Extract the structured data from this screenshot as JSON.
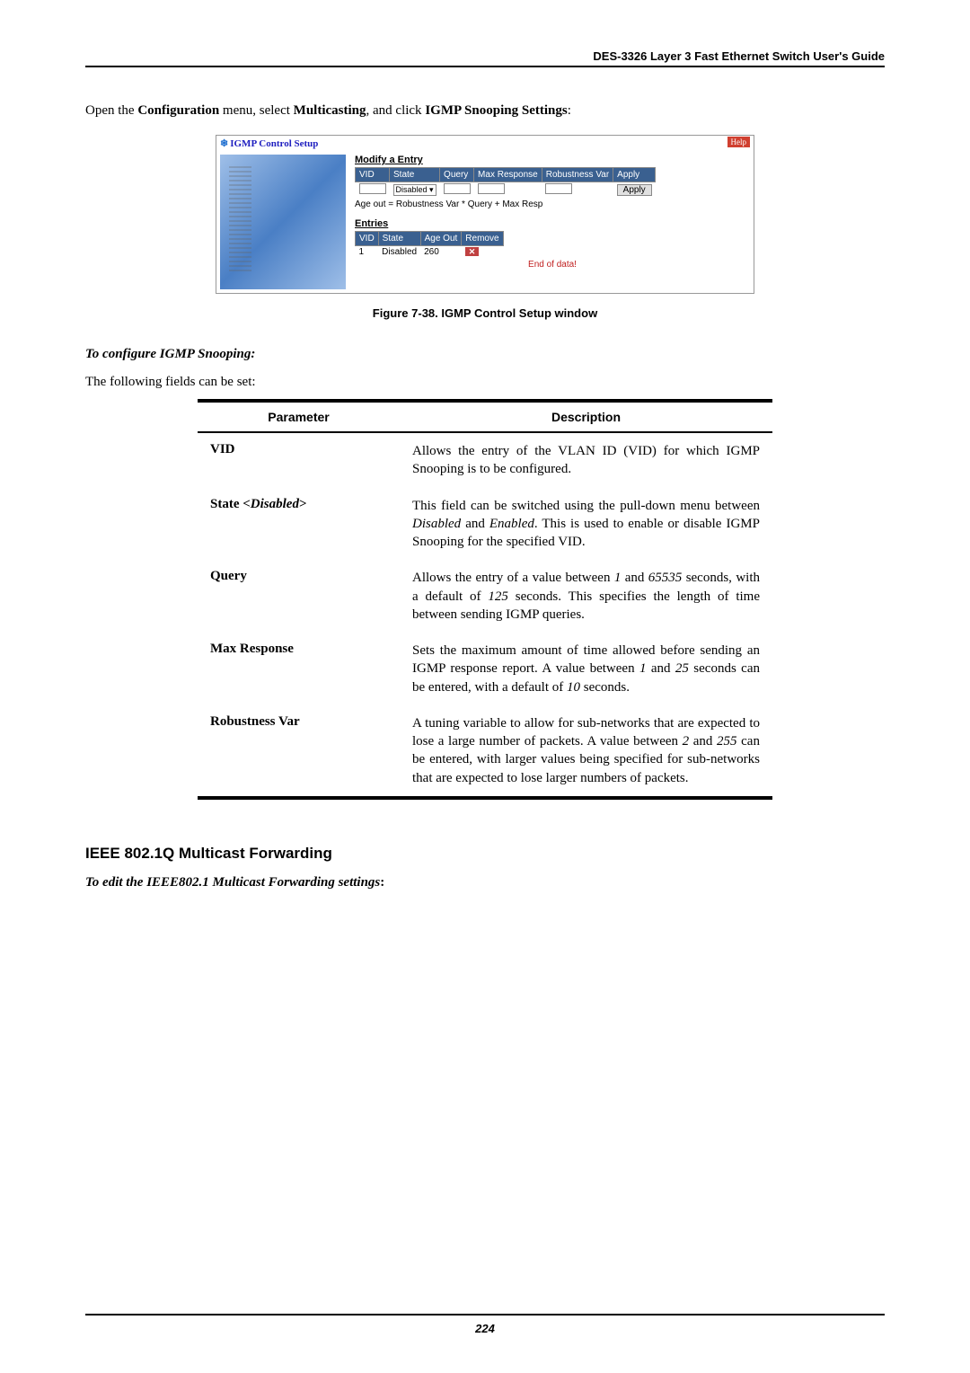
{
  "header": {
    "title": "DES-3326 Layer 3 Fast Ethernet Switch User's Guide"
  },
  "intro": {
    "prefix": "Open the ",
    "menu1": "Configuration",
    "mid1": " menu, select ",
    "menu2": "Multicasting",
    "mid2": ", and click ",
    "menu3": "IGMP Snooping Settings",
    "suffix": ":"
  },
  "screenshot": {
    "title": "IGMP Control Setup",
    "help": "Help",
    "modify_title": "Modify a Entry",
    "headers": [
      "VID",
      "State",
      "Query",
      "Max Response",
      "Robustness Var",
      "Apply"
    ],
    "state_dropdown": "Disabled ▾",
    "apply_btn": "Apply",
    "formula": "Age out = Robustness Var * Query + Max Resp",
    "entries_title": "Entries",
    "entries_headers": [
      "VID",
      "State",
      "Age Out",
      "Remove"
    ],
    "entries_row": [
      "1",
      "Disabled",
      "260"
    ],
    "end": "End of data!"
  },
  "figure_caption": "Figure 7-38.  IGMP Control Setup window",
  "configure_heading": "To configure IGMP Snooping:",
  "fields_intro": "The following fields can be set:",
  "table": {
    "col1": "Parameter",
    "col2": "Description",
    "rows": [
      {
        "param": "VID",
        "desc": "Allows the entry of the VLAN ID (VID) for which IGMP Snooping is to be configured."
      },
      {
        "param_html": "State <<i>Disabled</i>>",
        "desc_html": "This field can be switched using the pull-down menu between <i>Disabled</i> and <i>Enabled</i>. This is used to enable or disable IGMP Snooping for the specified VID."
      },
      {
        "param": "Query",
        "desc_html": "Allows the entry of a value between <i>1</i> and <i>65535</i> seconds, with a default of <i>125</i> seconds. This specifies the length of time between sending IGMP queries."
      },
      {
        "param": "Max  Response",
        "desc_html": "Sets the maximum amount of time allowed before sending an IGMP response report. A value between <i>1</i> and <i>25</i> seconds can be entered, with a default of <i>10</i> seconds."
      },
      {
        "param": "Robustness Var",
        "desc_html": "A tuning variable to allow for sub-networks that are expected to lose a large number of packets. A value between <i>2</i> and <i>255</i> can be entered, with larger values being specified for sub-networks that are expected to lose larger numbers of packets."
      }
    ]
  },
  "section2_heading": "IEEE 802.1Q Multicast Forwarding",
  "section2_sub": "To edit the IEEE802.1 Multicast Forwarding settings",
  "page_number": "224"
}
